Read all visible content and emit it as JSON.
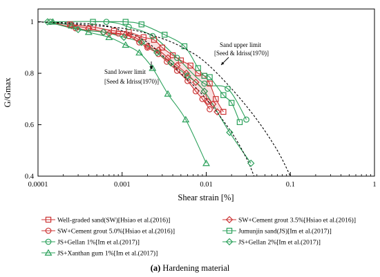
{
  "chart_data": {
    "type": "scatter",
    "x_scale": "log",
    "xlim": [
      0.0001,
      1
    ],
    "ylim": [
      0.4,
      1.05
    ],
    "xlabel": "Shear strain [%]",
    "ylabel": "G/Gmax",
    "x_ticks": [
      {
        "value": 0.0001,
        "label": "0.0001"
      },
      {
        "value": 0.001,
        "label": "0.001"
      },
      {
        "value": 0.01,
        "label": "0.01"
      },
      {
        "value": 0.1,
        "label": "0.1"
      },
      {
        "value": 1,
        "label": "1"
      }
    ],
    "y_ticks": [
      {
        "value": 0.4,
        "label": "0.4"
      },
      {
        "value": 0.6,
        "label": "0.6"
      },
      {
        "value": 0.8,
        "label": "0.8"
      },
      {
        "value": 1.0,
        "label": "1"
      }
    ],
    "grid": false,
    "legend_position": "bottom",
    "caption": {
      "bold": "(a)",
      "text": " Hardening material"
    },
    "annotations": [
      {
        "line1": "Sand upper limit",
        "line2": "[Seed & Idriss(1970)]"
      },
      {
        "line1": "Sand lower limit",
        "line2": "[Seed & Idriss(1970)]"
      }
    ],
    "limit_curves": [
      {
        "label": "upper",
        "x": [
          0.0001,
          0.001,
          0.003,
          0.006,
          0.01,
          0.02,
          0.04,
          0.07,
          0.1
        ],
        "y": [
          1.0,
          0.975,
          0.935,
          0.89,
          0.84,
          0.74,
          0.62,
          0.5,
          0.4
        ]
      },
      {
        "label": "lower",
        "x": [
          0.0001,
          0.0005,
          0.001,
          0.002,
          0.005,
          0.01,
          0.02,
          0.03,
          0.037
        ],
        "y": [
          1.0,
          0.99,
          0.965,
          0.92,
          0.8,
          0.7,
          0.57,
          0.47,
          0.4
        ]
      }
    ],
    "series": [
      {
        "name": "Well-graded sand(SW)[Hsiao et al.(2016)]",
        "color": "#cc3333",
        "marker": "square",
        "x": [
          0.00024,
          0.00045,
          0.0008,
          0.0012,
          0.0018,
          0.0024,
          0.003,
          0.004,
          0.005,
          0.0065,
          0.008,
          0.0095,
          0.011,
          0.013,
          0.016
        ],
        "y": [
          0.99,
          0.98,
          0.965,
          0.96,
          0.94,
          0.93,
          0.9,
          0.87,
          0.85,
          0.83,
          0.8,
          0.79,
          0.76,
          0.7,
          0.65
        ]
      },
      {
        "name": "SW+Cement grout 3.5%[Hsiao et al.(2016)]",
        "color": "#cc3333",
        "marker": "diamond",
        "x": [
          0.00025,
          0.0004,
          0.0007,
          0.0011,
          0.0015,
          0.002,
          0.0027,
          0.0035,
          0.0045,
          0.0058,
          0.0075,
          0.0095,
          0.0105,
          0.012,
          0.0135
        ],
        "y": [
          0.985,
          0.975,
          0.955,
          0.95,
          0.935,
          0.905,
          0.89,
          0.86,
          0.83,
          0.8,
          0.765,
          0.73,
          0.69,
          0.68,
          0.65
        ]
      },
      {
        "name": "SW+Cement grout 5.0%[Hsiao et al.(2016)]",
        "color": "#cc3333",
        "marker": "circle",
        "x": [
          0.00014,
          0.00028,
          0.0006,
          0.0009,
          0.0012,
          0.0016,
          0.002,
          0.0027,
          0.0034,
          0.0045,
          0.006,
          0.0075,
          0.009,
          0.011
        ],
        "y": [
          1.0,
          0.975,
          0.96,
          0.955,
          0.945,
          0.92,
          0.9,
          0.875,
          0.845,
          0.81,
          0.77,
          0.73,
          0.7,
          0.66
        ]
      },
      {
        "name": "Jumunjin sand(JS)[Im et al.(2017)]",
        "color": "#2aa05a",
        "marker": "square",
        "x": [
          0.00045,
          0.0011,
          0.0017,
          0.0032,
          0.0055,
          0.008,
          0.0095,
          0.011,
          0.016,
          0.02,
          0.025
        ],
        "y": [
          1.0,
          1.0,
          0.99,
          0.95,
          0.905,
          0.82,
          0.79,
          0.785,
          0.715,
          0.685,
          0.61
        ]
      },
      {
        "name": "JS+Gellan 1%[Im et al.(2017)]",
        "color": "#2aa05a",
        "marker": "circle",
        "x": [
          0.00014,
          0.00065,
          0.0012,
          0.0023,
          0.0045,
          0.0095,
          0.018,
          0.03
        ],
        "y": [
          1.0,
          1.0,
          0.98,
          0.945,
          0.86,
          0.76,
          0.74,
          0.62
        ]
      },
      {
        "name": "JS+Gellan 2%[Im et al.(2017)]",
        "color": "#2aa05a",
        "marker": "diamond",
        "x": [
          0.00013,
          0.0003,
          0.0006,
          0.00105,
          0.0017,
          0.0026,
          0.0038,
          0.006,
          0.0095,
          0.019,
          0.034
        ],
        "y": [
          1.0,
          0.97,
          0.96,
          0.94,
          0.92,
          0.88,
          0.84,
          0.79,
          0.73,
          0.57,
          0.45
        ]
      },
      {
        "name": "JS+Xanthan gum 1%[Im et al.(2017)]",
        "color": "#2aa05a",
        "marker": "triangle",
        "x": [
          0.00015,
          0.00025,
          0.0004,
          0.0007,
          0.0011,
          0.0016,
          0.0023,
          0.0035,
          0.0057,
          0.01
        ],
        "y": [
          1.0,
          0.985,
          0.96,
          0.94,
          0.91,
          0.88,
          0.82,
          0.72,
          0.62,
          0.45
        ]
      }
    ]
  }
}
